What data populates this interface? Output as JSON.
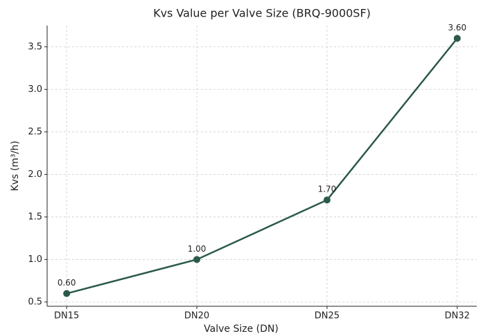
{
  "chart_data": {
    "type": "line",
    "title": "Kvs Value per Valve Size (BRQ-9000SF)",
    "x_label": "Valve Size (DN)",
    "y_label": "Kvs (m³/h)",
    "categories": [
      "DN15",
      "DN20",
      "DN25",
      "DN32"
    ],
    "series": [
      {
        "name": "Kvs",
        "color": "#2b5a48",
        "values": [
          0.6,
          1.0,
          1.7,
          3.6
        ],
        "value_labels": [
          "0.60",
          "1.00",
          "1.70",
          "3.60"
        ]
      }
    ],
    "ylim": [
      0.45,
      3.75
    ],
    "yticks": [
      {
        "value": 0.5,
        "label": "0.5"
      },
      {
        "value": 1.0,
        "label": "1.0"
      },
      {
        "value": 1.5,
        "label": "1.5"
      },
      {
        "value": 2.0,
        "label": "2.0"
      },
      {
        "value": 2.5,
        "label": "2.5"
      },
      {
        "value": 3.0,
        "label": "3.0"
      },
      {
        "value": 3.5,
        "label": "3.5"
      }
    ],
    "grid": true
  }
}
